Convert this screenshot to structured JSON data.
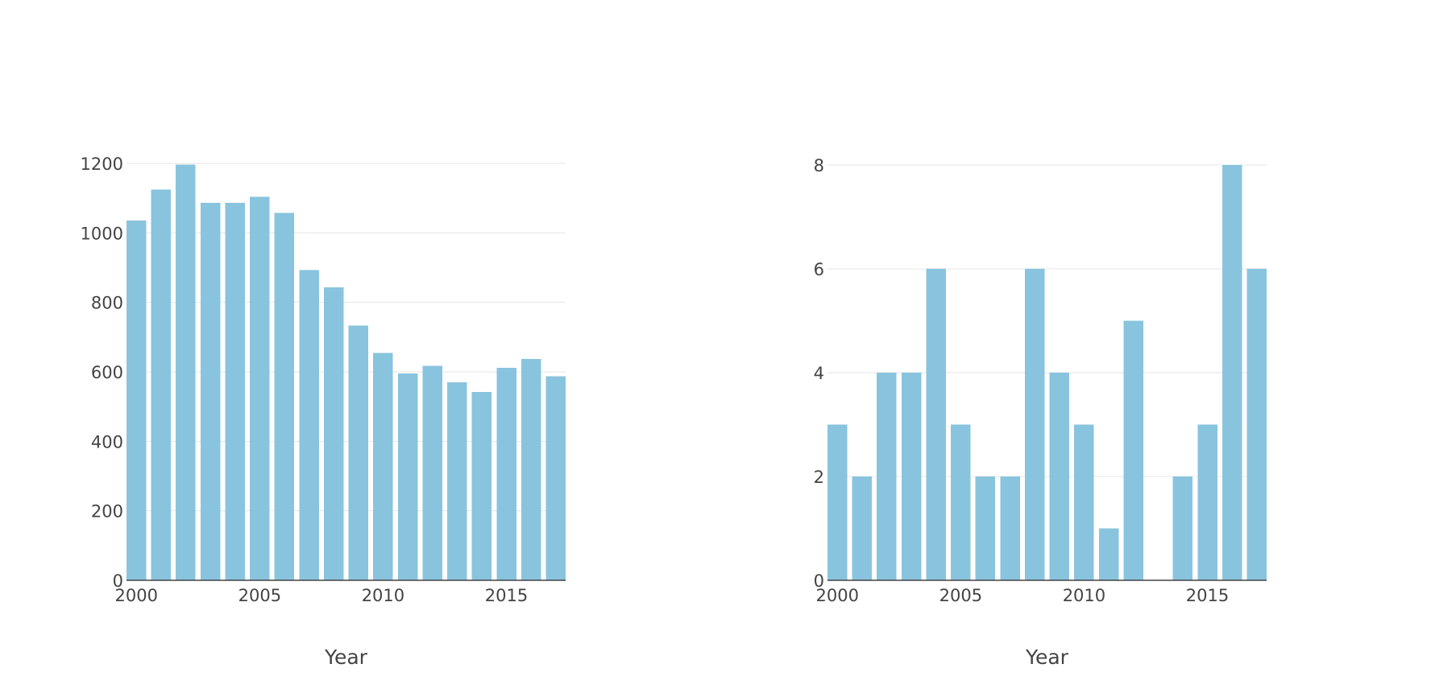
{
  "chart_data": [
    {
      "type": "bar",
      "x": [
        2000,
        2001,
        2002,
        2003,
        2004,
        2005,
        2006,
        2007,
        2008,
        2009,
        2010,
        2011,
        2012,
        2013,
        2014,
        2015,
        2016,
        2017
      ],
      "values": [
        1035,
        1125,
        1197,
        1086,
        1087,
        1104,
        1057,
        893,
        843,
        733,
        654,
        595,
        617,
        570,
        542,
        612,
        637,
        587
      ],
      "xlabel": "Year",
      "ylabel": "",
      "xlim": [
        1999.6,
        2017.4
      ],
      "ylim": [
        0,
        1200
      ],
      "xticks": [
        2000,
        2005,
        2010,
        2015
      ],
      "yticks": [
        0,
        200,
        400,
        600,
        800,
        1000,
        1200
      ],
      "grid": true,
      "bar_color": "#89c4de"
    },
    {
      "type": "bar",
      "x": [
        2000,
        2001,
        2002,
        2003,
        2004,
        2005,
        2006,
        2007,
        2008,
        2009,
        2010,
        2011,
        2012,
        2013,
        2014,
        2015,
        2016,
        2017
      ],
      "values": [
        3,
        2,
        4,
        4,
        6,
        3,
        2,
        2,
        6,
        4,
        3,
        1,
        5,
        0,
        2,
        3,
        8,
        6
      ],
      "xlabel": "Year",
      "ylabel": "",
      "xlim": [
        1999.6,
        2017.4
      ],
      "ylim": [
        0,
        8
      ],
      "xticks": [
        2000,
        2005,
        2010,
        2015
      ],
      "yticks": [
        0,
        2,
        4,
        6,
        8
      ],
      "grid": true,
      "bar_color": "#89c4de"
    }
  ]
}
